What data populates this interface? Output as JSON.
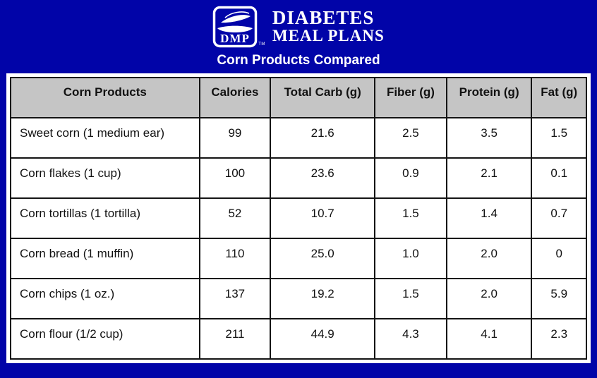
{
  "brand": {
    "logo_text": "DMP",
    "trademark": "TM",
    "name_line1": "DIABETES",
    "name_line2": "MEAL PLANS"
  },
  "title": "Corn Products Compared",
  "colors": {
    "background": "#0104A8",
    "header_row_bg": "#C5C5C5",
    "table_border": "#141414",
    "card_bg": "#FFFFFF",
    "text_on_blue": "#FFFFFF",
    "table_text": "#111111"
  },
  "chart_data": {
    "type": "table",
    "title": "Corn Products Compared",
    "columns": [
      "Corn Products",
      "Calories",
      "Total Carb (g)",
      "Fiber (g)",
      "Protein (g)",
      "Fat (g)"
    ],
    "rows": [
      {
        "product": "Sweet corn (1 medium ear)",
        "values": [
          "99",
          "21.6",
          "2.5",
          "3.5",
          "1.5"
        ]
      },
      {
        "product": "Corn flakes (1 cup)",
        "values": [
          "100",
          "23.6",
          "0.9",
          "2.1",
          "0.1"
        ]
      },
      {
        "product": "Corn tortillas (1 tortilla)",
        "values": [
          "52",
          "10.7",
          "1.5",
          "1.4",
          "0.7"
        ]
      },
      {
        "product": "Corn bread (1 muffin)",
        "values": [
          "110",
          "25.0",
          "1.0",
          "2.0",
          "0"
        ]
      },
      {
        "product": "Corn chips (1 oz.)",
        "values": [
          "137",
          "19.2",
          "1.5",
          "2.0",
          "5.9"
        ]
      },
      {
        "product": "Corn flour (1/2 cup)",
        "values": [
          "211",
          "44.9",
          "4.3",
          "4.1",
          "2.3"
        ]
      }
    ]
  }
}
